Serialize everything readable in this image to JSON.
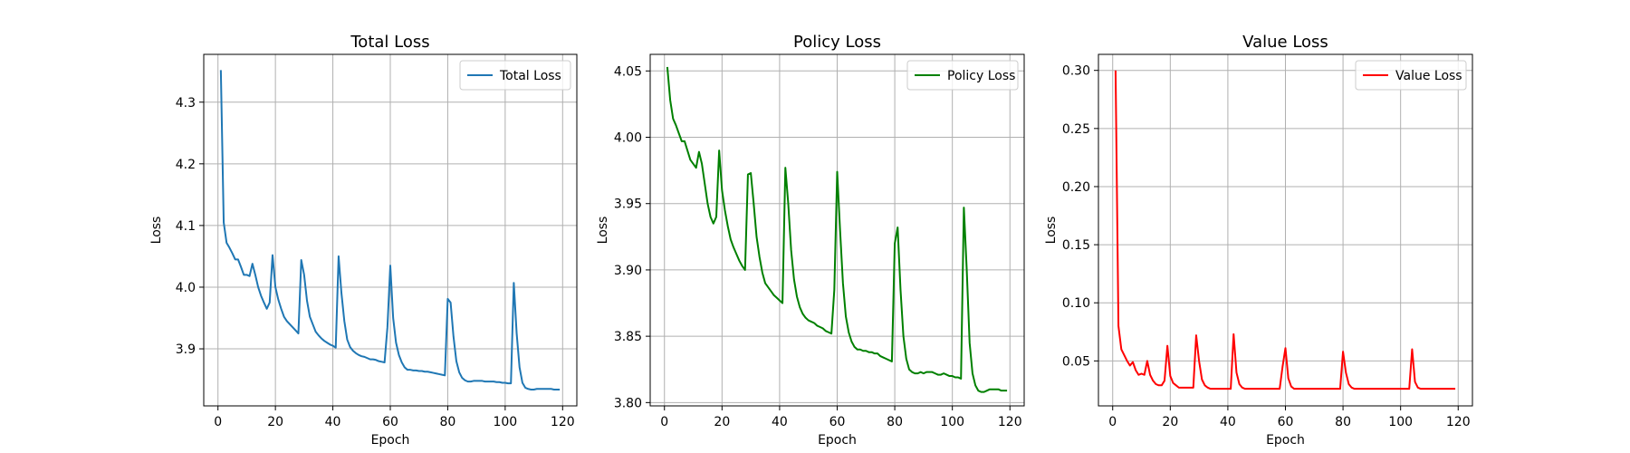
{
  "chart_data": [
    {
      "type": "line",
      "title": "Total Loss",
      "xlabel": "Epoch",
      "ylabel": "Loss",
      "xlim": [
        -4.95,
        124.95
      ],
      "ylim": [
        3.8075,
        4.3775
      ],
      "xticks": [
        0,
        20,
        40,
        60,
        80,
        100,
        120
      ],
      "yticks": [
        3.9,
        4.0,
        4.1,
        4.2,
        4.3
      ],
      "ytick_labels": [
        "3.9",
        "4.0",
        "4.1",
        "4.2",
        "4.3"
      ],
      "grid": true,
      "legend_position": "upper right",
      "series": [
        {
          "name": "Total Loss",
          "color": "#1f77b4",
          "values": [
            4.352,
            4.105,
            4.072,
            4.064,
            4.055,
            4.045,
            4.045,
            4.033,
            4.02,
            4.02,
            4.018,
            4.038,
            4.02,
            4.0,
            3.986,
            3.975,
            3.965,
            3.975,
            4.052,
            4.0,
            3.98,
            3.965,
            3.952,
            3.945,
            3.94,
            3.935,
            3.93,
            3.925,
            4.044,
            4.02,
            3.978,
            3.952,
            3.94,
            3.928,
            3.922,
            3.917,
            3.913,
            3.91,
            3.907,
            3.905,
            3.902,
            4.05,
            3.99,
            3.945,
            3.915,
            3.903,
            3.897,
            3.893,
            3.89,
            3.888,
            3.887,
            3.885,
            3.883,
            3.883,
            3.882,
            3.88,
            3.879,
            3.878,
            3.935,
            4.035,
            3.95,
            3.91,
            3.89,
            3.878,
            3.87,
            3.866,
            3.866,
            3.865,
            3.865,
            3.864,
            3.864,
            3.863,
            3.863,
            3.862,
            3.861,
            3.86,
            3.859,
            3.858,
            3.857,
            3.981,
            3.975,
            3.92,
            3.88,
            3.862,
            3.853,
            3.849,
            3.847,
            3.847,
            3.848,
            3.848,
            3.848,
            3.848,
            3.847,
            3.847,
            3.847,
            3.847,
            3.846,
            3.846,
            3.845,
            3.845,
            3.844,
            3.844,
            4.007,
            3.925,
            3.87,
            3.845,
            3.837,
            3.835,
            3.834,
            3.834,
            3.835,
            3.835,
            3.835,
            3.835,
            3.835,
            3.835,
            3.834,
            3.834,
            3.834
          ]
        }
      ]
    },
    {
      "type": "line",
      "title": "Policy Loss",
      "xlabel": "Epoch",
      "ylabel": "Loss",
      "xlim": [
        -4.95,
        124.95
      ],
      "ylim": [
        3.7975,
        4.0625
      ],
      "xticks": [
        0,
        20,
        40,
        60,
        80,
        100,
        120
      ],
      "yticks": [
        3.8,
        3.85,
        3.9,
        3.95,
        4.0,
        4.05
      ],
      "ytick_labels": [
        "3.80",
        "3.85",
        "3.90",
        "3.95",
        "4.00",
        "4.05"
      ],
      "grid": true,
      "legend_position": "upper right",
      "series": [
        {
          "name": "Policy Loss",
          "color": "#008000",
          "values": [
            4.053,
            4.028,
            4.014,
            4.009,
            4.003,
            3.997,
            3.997,
            3.99,
            3.983,
            3.98,
            3.977,
            3.989,
            3.98,
            3.965,
            3.95,
            3.94,
            3.935,
            3.94,
            3.99,
            3.96,
            3.945,
            3.933,
            3.923,
            3.917,
            3.912,
            3.907,
            3.903,
            3.9,
            3.972,
            3.973,
            3.95,
            3.925,
            3.91,
            3.898,
            3.89,
            3.887,
            3.884,
            3.881,
            3.879,
            3.877,
            3.875,
            3.977,
            3.95,
            3.915,
            3.893,
            3.88,
            3.872,
            3.867,
            3.864,
            3.862,
            3.861,
            3.86,
            3.858,
            3.857,
            3.856,
            3.854,
            3.853,
            3.852,
            3.885,
            3.974,
            3.93,
            3.89,
            3.865,
            3.853,
            3.846,
            3.842,
            3.84,
            3.84,
            3.839,
            3.839,
            3.838,
            3.838,
            3.837,
            3.837,
            3.835,
            3.834,
            3.833,
            3.832,
            3.831,
            3.92,
            3.932,
            3.885,
            3.85,
            3.833,
            3.825,
            3.823,
            3.822,
            3.822,
            3.823,
            3.822,
            3.823,
            3.823,
            3.823,
            3.822,
            3.821,
            3.821,
            3.822,
            3.821,
            3.82,
            3.82,
            3.819,
            3.819,
            3.818,
            3.947,
            3.9,
            3.845,
            3.822,
            3.813,
            3.809,
            3.808,
            3.808,
            3.809,
            3.81,
            3.81,
            3.81,
            3.81,
            3.809,
            3.809,
            3.809
          ]
        }
      ]
    },
    {
      "type": "line",
      "title": "Value Loss",
      "xlabel": "Epoch",
      "ylabel": "Loss",
      "xlim": [
        -4.95,
        124.95
      ],
      "ylim": [
        0.0113,
        0.3138
      ],
      "xticks": [
        0,
        20,
        40,
        60,
        80,
        100,
        120
      ],
      "yticks": [
        0.05,
        0.1,
        0.15,
        0.2,
        0.25,
        0.3
      ],
      "ytick_labels": [
        "0.05",
        "0.10",
        "0.15",
        "0.20",
        "0.25",
        "0.30"
      ],
      "grid": true,
      "legend_position": "upper right",
      "series": [
        {
          "name": "Value Loss",
          "color": "#ff0000",
          "values": [
            0.3,
            0.08,
            0.06,
            0.055,
            0.05,
            0.046,
            0.049,
            0.042,
            0.038,
            0.039,
            0.038,
            0.05,
            0.038,
            0.033,
            0.03,
            0.029,
            0.029,
            0.033,
            0.063,
            0.037,
            0.031,
            0.029,
            0.027,
            0.027,
            0.027,
            0.027,
            0.027,
            0.027,
            0.072,
            0.05,
            0.034,
            0.029,
            0.027,
            0.026,
            0.026,
            0.026,
            0.026,
            0.026,
            0.026,
            0.026,
            0.026,
            0.073,
            0.04,
            0.03,
            0.027,
            0.026,
            0.026,
            0.026,
            0.026,
            0.026,
            0.026,
            0.026,
            0.026,
            0.026,
            0.026,
            0.026,
            0.026,
            0.026,
            0.045,
            0.061,
            0.035,
            0.028,
            0.026,
            0.026,
            0.026,
            0.026,
            0.026,
            0.026,
            0.026,
            0.026,
            0.026,
            0.026,
            0.026,
            0.026,
            0.026,
            0.026,
            0.026,
            0.026,
            0.026,
            0.058,
            0.04,
            0.03,
            0.027,
            0.026,
            0.026,
            0.026,
            0.026,
            0.026,
            0.026,
            0.026,
            0.026,
            0.026,
            0.026,
            0.026,
            0.026,
            0.026,
            0.026,
            0.026,
            0.026,
            0.026,
            0.026,
            0.026,
            0.026,
            0.06,
            0.032,
            0.027,
            0.026,
            0.026,
            0.026,
            0.026,
            0.026,
            0.026,
            0.026,
            0.026,
            0.026,
            0.026,
            0.026,
            0.026,
            0.026
          ]
        }
      ]
    }
  ]
}
